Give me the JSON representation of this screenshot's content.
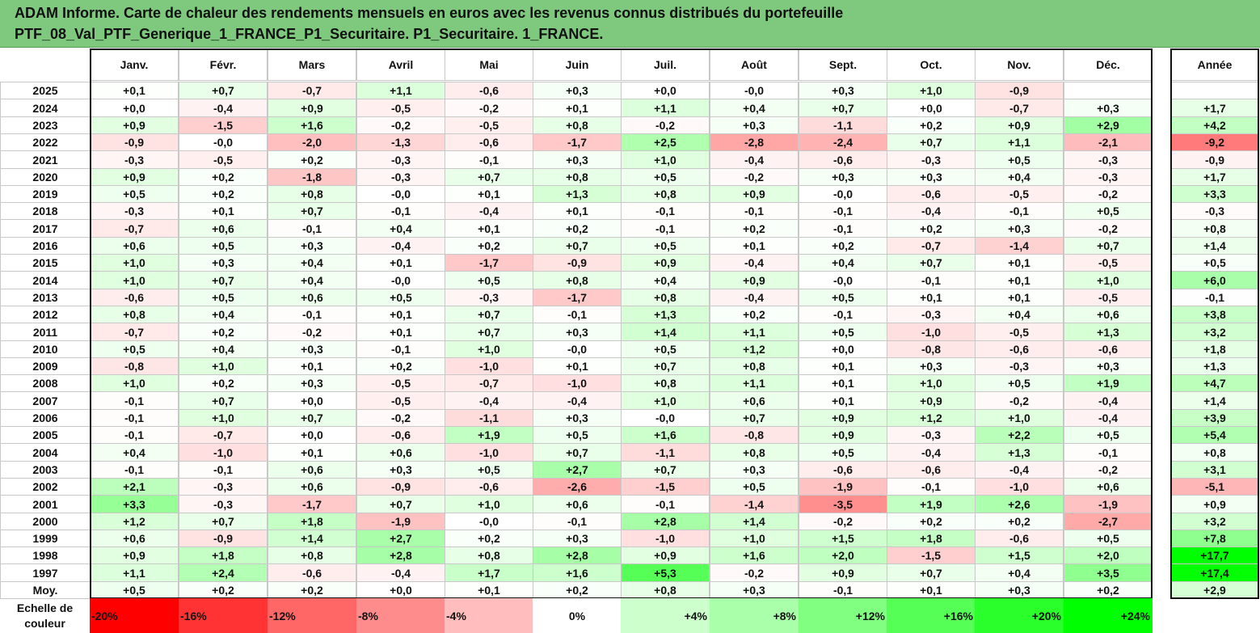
{
  "title_line1": "ADAM Informe. Carte de chaleur des rendements mensuels en euros avec les revenus connus distribués du portefeuille",
  "title_line2": "PTF_08_Val_PTF_Generique_1_FRANCE_P1_Securitaire. P1_Securitaire. 1_FRANCE.",
  "chart_data": {
    "type": "heatmap",
    "title": "ADAM Informe. Carte de chaleur des rendements mensuels en euros avec les revenus connus distribués du portefeuille PTF_08_Val_PTF_Generique_1_FRANCE_P1_Securitaire. P1_Securitaire. 1_FRANCE.",
    "columns": [
      "Janv.",
      "Févr.",
      "Mars",
      "Avril",
      "Mai",
      "Juin",
      "Juil.",
      "Août",
      "Sept.",
      "Oct.",
      "Nov.",
      "Déc."
    ],
    "year_column_label": "Année",
    "rows": [
      {
        "label": "2025",
        "values": [
          "+0,1",
          "+0,7",
          "-0,7",
          "+1,1",
          "-0,6",
          "+0,3",
          "+0,0",
          "-0,0",
          "+0,3",
          "+1,0",
          "-0,9",
          ""
        ],
        "year": ""
      },
      {
        "label": "2024",
        "values": [
          "+0,0",
          "-0,4",
          "+0,9",
          "-0,5",
          "-0,2",
          "+0,1",
          "+1,1",
          "+0,4",
          "+0,7",
          "+0,0",
          "-0,7",
          "+0,3"
        ],
        "year": "+1,7"
      },
      {
        "label": "2023",
        "values": [
          "+0,9",
          "-1,5",
          "+1,6",
          "-0,2",
          "-0,5",
          "+0,8",
          "-0,2",
          "+0,3",
          "-1,1",
          "+0,2",
          "+0,9",
          "+2,9"
        ],
        "year": "+4,2"
      },
      {
        "label": "2022",
        "values": [
          "-0,9",
          "-0,0",
          "-2,0",
          "-1,3",
          "-0,6",
          "-1,7",
          "+2,5",
          "-2,8",
          "-2,4",
          "+0,7",
          "+1,1",
          "-2,1"
        ],
        "year": "-9,2"
      },
      {
        "label": "2021",
        "values": [
          "-0,3",
          "-0,5",
          "+0,2",
          "-0,3",
          "-0,1",
          "+0,3",
          "+1,0",
          "-0,4",
          "-0,6",
          "-0,3",
          "+0,5",
          "-0,3"
        ],
        "year": "-0,9"
      },
      {
        "label": "2020",
        "values": [
          "+0,9",
          "+0,2",
          "-1,8",
          "-0,3",
          "+0,7",
          "+0,8",
          "+0,5",
          "-0,2",
          "+0,3",
          "+0,3",
          "+0,4",
          "-0,3"
        ],
        "year": "+1,7"
      },
      {
        "label": "2019",
        "values": [
          "+0,5",
          "+0,2",
          "+0,8",
          "-0,0",
          "+0,1",
          "+1,3",
          "+0,8",
          "+0,9",
          "-0,0",
          "-0,6",
          "-0,5",
          "-0,2"
        ],
        "year": "+3,3"
      },
      {
        "label": "2018",
        "values": [
          "-0,3",
          "+0,1",
          "+0,7",
          "-0,1",
          "-0,4",
          "+0,1",
          "-0,1",
          "-0,1",
          "-0,1",
          "-0,4",
          "-0,1",
          "+0,5"
        ],
        "year": "-0,3"
      },
      {
        "label": "2017",
        "values": [
          "-0,7",
          "+0,6",
          "-0,1",
          "+0,4",
          "+0,1",
          "+0,2",
          "-0,1",
          "+0,2",
          "-0,1",
          "+0,2",
          "+0,3",
          "-0,2"
        ],
        "year": "+0,8"
      },
      {
        "label": "2016",
        "values": [
          "+0,6",
          "+0,5",
          "+0,3",
          "-0,4",
          "+0,2",
          "+0,7",
          "+0,5",
          "+0,1",
          "+0,2",
          "-0,7",
          "-1,4",
          "+0,7"
        ],
        "year": "+1,4"
      },
      {
        "label": "2015",
        "values": [
          "+1,0",
          "+0,3",
          "+0,4",
          "+0,1",
          "-1,7",
          "-0,9",
          "+0,9",
          "-0,4",
          "+0,4",
          "+0,7",
          "+0,1",
          "-0,5"
        ],
        "year": "+0,5"
      },
      {
        "label": "2014",
        "values": [
          "+1,0",
          "+0,7",
          "+0,4",
          "-0,0",
          "+0,5",
          "+0,8",
          "+0,4",
          "+0,9",
          "-0,0",
          "-0,1",
          "+0,1",
          "+1,0"
        ],
        "year": "+6,0"
      },
      {
        "label": "2013",
        "values": [
          "-0,6",
          "+0,5",
          "+0,6",
          "+0,5",
          "-0,3",
          "-1,7",
          "+0,8",
          "-0,4",
          "+0,5",
          "+0,1",
          "+0,1",
          "-0,5"
        ],
        "year": "-0,1"
      },
      {
        "label": "2012",
        "values": [
          "+0,8",
          "+0,4",
          "-0,1",
          "+0,1",
          "+0,7",
          "-0,1",
          "+1,3",
          "+0,2",
          "-0,1",
          "-0,3",
          "+0,4",
          "+0,6"
        ],
        "year": "+3,8"
      },
      {
        "label": "2011",
        "values": [
          "-0,7",
          "+0,2",
          "-0,2",
          "+0,1",
          "+0,7",
          "+0,3",
          "+1,4",
          "+1,1",
          "+0,5",
          "-1,0",
          "-0,5",
          "+1,3"
        ],
        "year": "+3,2"
      },
      {
        "label": "2010",
        "values": [
          "+0,5",
          "+0,4",
          "+0,3",
          "-0,1",
          "+1,0",
          "-0,0",
          "+0,5",
          "+1,2",
          "+0,0",
          "-0,8",
          "-0,6",
          "-0,6"
        ],
        "year": "+1,8"
      },
      {
        "label": "2009",
        "values": [
          "-0,8",
          "+1,0",
          "+0,1",
          "+0,2",
          "-1,0",
          "+0,1",
          "+0,7",
          "+0,8",
          "+0,1",
          "+0,3",
          "-0,3",
          "+0,3"
        ],
        "year": "+1,3"
      },
      {
        "label": "2008",
        "values": [
          "+1,0",
          "+0,2",
          "+0,3",
          "-0,5",
          "-0,7",
          "-1,0",
          "+0,8",
          "+1,1",
          "+0,1",
          "+1,0",
          "+0,5",
          "+1,9"
        ],
        "year": "+4,7"
      },
      {
        "label": "2007",
        "values": [
          "-0,1",
          "+0,7",
          "+0,0",
          "-0,5",
          "-0,4",
          "-0,4",
          "+1,0",
          "+0,6",
          "+0,1",
          "+0,9",
          "-0,2",
          "-0,4"
        ],
        "year": "+1,4"
      },
      {
        "label": "2006",
        "values": [
          "-0,1",
          "+1,0",
          "+0,7",
          "-0,2",
          "-1,1",
          "+0,3",
          "-0,0",
          "+0,7",
          "+0,9",
          "+1,2",
          "+1,0",
          "-0,4"
        ],
        "year": "+3,9"
      },
      {
        "label": "2005",
        "values": [
          "-0,1",
          "-0,7",
          "+0,0",
          "-0,6",
          "+1,9",
          "+0,5",
          "+1,6",
          "-0,8",
          "+0,9",
          "-0,3",
          "+2,2",
          "+0,5"
        ],
        "year": "+5,4"
      },
      {
        "label": "2004",
        "values": [
          "+0,4",
          "-1,0",
          "+0,1",
          "+0,6",
          "-1,0",
          "+0,7",
          "-1,1",
          "+0,8",
          "+0,5",
          "-0,4",
          "+1,3",
          "-0,1"
        ],
        "year": "+0,8"
      },
      {
        "label": "2003",
        "values": [
          "-0,1",
          "-0,1",
          "+0,6",
          "+0,3",
          "+0,5",
          "+2,7",
          "+0,7",
          "+0,3",
          "-0,6",
          "-0,6",
          "-0,4",
          "-0,2"
        ],
        "year": "+3,1"
      },
      {
        "label": "2002",
        "values": [
          "+2,1",
          "-0,3",
          "+0,6",
          "-0,9",
          "-0,6",
          "-2,6",
          "-1,5",
          "+0,5",
          "-1,9",
          "-0,1",
          "-1,0",
          "+0,6"
        ],
        "year": "-5,1"
      },
      {
        "label": "2001",
        "values": [
          "+3,3",
          "-0,3",
          "-1,7",
          "+0,7",
          "+1,0",
          "+0,6",
          "-0,1",
          "-1,4",
          "-3,5",
          "+1,9",
          "+2,6",
          "-1,9"
        ],
        "year": "+0,9"
      },
      {
        "label": "2000",
        "values": [
          "+1,2",
          "+0,7",
          "+1,8",
          "-1,9",
          "-0,0",
          "-0,1",
          "+2,8",
          "+1,4",
          "-0,2",
          "+0,2",
          "+0,2",
          "-2,7"
        ],
        "year": "+3,2"
      },
      {
        "label": "1999",
        "values": [
          "+0,6",
          "-0,9",
          "+1,4",
          "+2,7",
          "+0,2",
          "+0,3",
          "-1,0",
          "+1,0",
          "+1,5",
          "+1,8",
          "-0,6",
          "+0,5"
        ],
        "year": "+7,8"
      },
      {
        "label": "1998",
        "values": [
          "+0,9",
          "+1,8",
          "+0,8",
          "+2,8",
          "+0,8",
          "+2,8",
          "+0,9",
          "+1,6",
          "+2,0",
          "-1,5",
          "+1,5",
          "+2,0"
        ],
        "year": "+17,7"
      },
      {
        "label": "1997",
        "values": [
          "+1,1",
          "+2,4",
          "-0,6",
          "-0,4",
          "+1,7",
          "+1,6",
          "+5,3",
          "-0,2",
          "+0,9",
          "+0,7",
          "+0,4",
          "+3,5"
        ],
        "year": "+17,4"
      }
    ],
    "average_row": {
      "label": "Moy.",
      "values": [
        "+0,5",
        "+0,2",
        "+0,2",
        "+0,0",
        "+0,1",
        "+0,2",
        "+0,8",
        "+0,3",
        "-0,1",
        "+0,1",
        "+0,3",
        "+0,2"
      ],
      "year": "+2,9"
    },
    "scale_label_line1": "Echelle de",
    "scale_label_line2": "couleur",
    "scale": [
      {
        "label": "-20%",
        "color": "#ff0000"
      },
      {
        "label": "-16%",
        "color": "#ff3333"
      },
      {
        "label": "-12%",
        "color": "#ff6666"
      },
      {
        "label": "-8%",
        "color": "#ff8c8c"
      },
      {
        "label": "-4%",
        "color": "#ffbdbd"
      },
      {
        "label": "0%",
        "color": "#ffffff"
      },
      {
        "label": "+4%",
        "color": "#ccffcc"
      },
      {
        "label": "+8%",
        "color": "#aaffaa"
      },
      {
        "label": "+12%",
        "color": "#80ff80"
      },
      {
        "label": "+16%",
        "color": "#55ff55"
      },
      {
        "label": "+20%",
        "color": "#2bff2b"
      },
      {
        "label": "+24%",
        "color": "#00ff00"
      }
    ]
  }
}
